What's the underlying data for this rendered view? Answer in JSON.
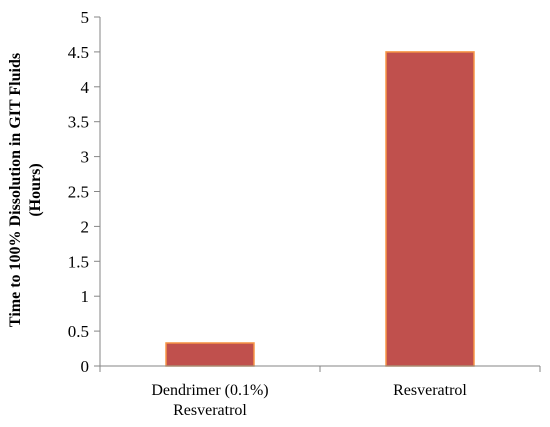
{
  "chart_data": {
    "type": "bar",
    "categories": [
      [
        "Dendrimer (0.1%)",
        "Resveratrol"
      ],
      [
        "Resveratrol"
      ]
    ],
    "values": [
      0.33,
      4.5
    ],
    "title": "",
    "xlabel": "",
    "ylabel_lines": [
      "Time to 100% Dissolution in GIT Fluids",
      "(Hours)"
    ],
    "ylim": [
      0,
      5
    ],
    "yticks": [
      "0",
      "0.5",
      "1",
      "1.5",
      "2",
      "2.5",
      "3",
      "3.5",
      "4",
      "4.5",
      "5"
    ],
    "grid": false,
    "legend": "none",
    "colors": {
      "bar_fill": "#c0504d",
      "bar_stroke": "#f79646",
      "axis": "#868686"
    }
  }
}
